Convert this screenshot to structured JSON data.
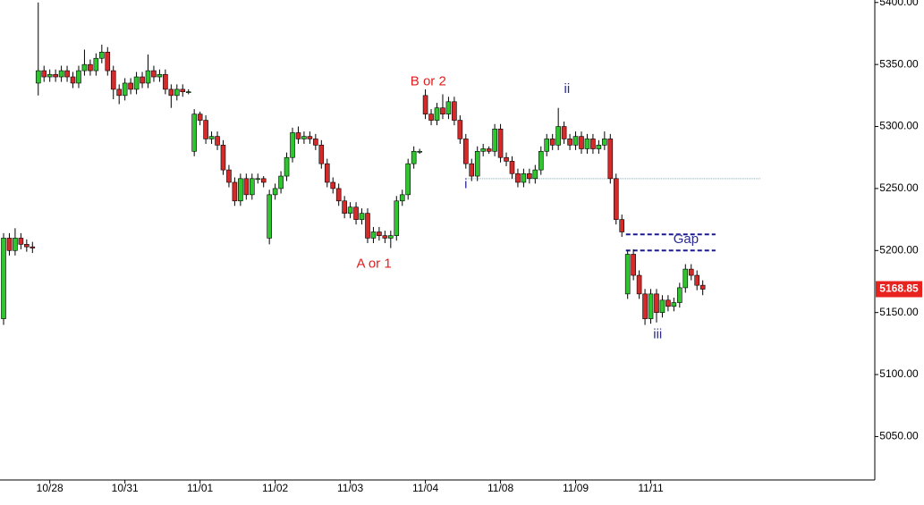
{
  "chart_data": {
    "type": "candlestick",
    "categories": [
      null,
      null,
      null,
      null,
      null,
      null,
      null,
      null,
      "10/28",
      null,
      null,
      null,
      null,
      null,
      null,
      null,
      null,
      null,
      null,
      null,
      null,
      "10/31",
      null,
      null,
      null,
      null,
      null,
      null,
      null,
      null,
      null,
      null,
      null,
      null,
      "11/01",
      null,
      null,
      null,
      null,
      null,
      null,
      null,
      null,
      null,
      null,
      null,
      null,
      "11/02",
      null,
      null,
      null,
      null,
      null,
      null,
      null,
      null,
      null,
      null,
      null,
      null,
      "11/03",
      null,
      null,
      null,
      null,
      null,
      null,
      null,
      null,
      null,
      null,
      null,
      null,
      "11/04",
      null,
      null,
      null,
      null,
      null,
      null,
      null,
      null,
      null,
      null,
      null,
      null,
      "11/08",
      null,
      null,
      null,
      null,
      null,
      null,
      null,
      null,
      null,
      null,
      null,
      null,
      "11/09",
      null,
      null,
      null,
      null,
      null,
      null,
      null,
      null,
      null,
      null,
      null,
      null,
      "11/11",
      null,
      null,
      null,
      null,
      null,
      null,
      null,
      null,
      null
    ],
    "open": [
      5145,
      5210,
      5200,
      5210,
      5205,
      5203,
      5335,
      5345,
      5340,
      5342,
      5340,
      5345,
      5340,
      5335,
      5345,
      5350,
      5345,
      5355,
      5360,
      5345,
      5330,
      5325,
      5335,
      5330,
      5340,
      5335,
      5345,
      5340,
      5342,
      5330,
      5325,
      5330,
      5328,
      5280,
      5310,
      5305,
      5290,
      5292,
      5285,
      5265,
      5255,
      5240,
      5258,
      5245,
      5258,
      5258,
      5210,
      5245,
      5250,
      5260,
      5275,
      5295,
      5290,
      5292,
      5290,
      5285,
      5270,
      5255,
      5250,
      5240,
      5230,
      5235,
      5225,
      5230,
      5210,
      5215,
      5212,
      5210,
      5212,
      5240,
      5245,
      5270,
      5280,
      5325,
      5310,
      5305,
      5315,
      5310,
      5320,
      5305,
      5290,
      5270,
      5260,
      5280,
      5282,
      5280,
      5298,
      5275,
      5272,
      5262,
      5255,
      5262,
      5258,
      5265,
      5280,
      5290,
      5285,
      5300,
      5290,
      5285,
      5292,
      5282,
      5290,
      5282,
      5285,
      5290,
      5258,
      5225,
      5165,
      5197,
      5180,
      5165,
      5145,
      5165,
      5150,
      5160,
      5155,
      5158,
      5170,
      5185,
      5180,
      5172
    ],
    "high": [
      5214,
      5214,
      5218,
      5214,
      5209,
      5207,
      5400,
      5349,
      5346,
      5346,
      5349,
      5349,
      5344,
      5349,
      5362,
      5354,
      5359,
      5366,
      5364,
      5349,
      5334,
      5339,
      5339,
      5344,
      5344,
      5358,
      5349,
      5346,
      5346,
      5334,
      5334,
      5334,
      5330,
      5314,
      5312,
      5309,
      5296,
      5296,
      5289,
      5269,
      5259,
      5262,
      5262,
      5262,
      5262,
      5260,
      5249,
      5254,
      5264,
      5279,
      5299,
      5300,
      5296,
      5296,
      5294,
      5289,
      5274,
      5259,
      5254,
      5244,
      5239,
      5239,
      5234,
      5234,
      5219,
      5219,
      5216,
      5216,
      5244,
      5249,
      5274,
      5284,
      5282,
      5330,
      5314,
      5319,
      5326,
      5324,
      5324,
      5309,
      5294,
      5274,
      5284,
      5286,
      5284,
      5302,
      5302,
      5279,
      5276,
      5266,
      5266,
      5266,
      5269,
      5284,
      5294,
      5294,
      5315,
      5304,
      5294,
      5296,
      5296,
      5294,
      5294,
      5289,
      5296,
      5294,
      5262,
      5229,
      5200,
      5201,
      5184,
      5169,
      5169,
      5169,
      5164,
      5164,
      5162,
      5174,
      5189,
      5189,
      5184,
      5176
    ],
    "low": [
      5140,
      5196,
      5196,
      5201,
      5199,
      5198,
      5325,
      5336,
      5336,
      5336,
      5336,
      5336,
      5331,
      5331,
      5341,
      5341,
      5341,
      5351,
      5341,
      5322,
      5318,
      5321,
      5326,
      5326,
      5331,
      5331,
      5336,
      5336,
      5326,
      5315,
      5321,
      5324,
      5326,
      5276,
      5301,
      5286,
      5286,
      5281,
      5261,
      5251,
      5236,
      5236,
      5241,
      5241,
      5254,
      5251,
      5205,
      5241,
      5246,
      5256,
      5271,
      5286,
      5286,
      5286,
      5281,
      5266,
      5251,
      5246,
      5236,
      5226,
      5226,
      5221,
      5221,
      5206,
      5206,
      5208,
      5206,
      5202,
      5208,
      5236,
      5241,
      5266,
      5278,
      5306,
      5301,
      5301,
      5306,
      5306,
      5301,
      5286,
      5266,
      5256,
      5256,
      5276,
      5278,
      5276,
      5271,
      5268,
      5258,
      5251,
      5251,
      5254,
      5254,
      5261,
      5276,
      5281,
      5281,
      5286,
      5281,
      5281,
      5278,
      5278,
      5278,
      5278,
      5281,
      5254,
      5221,
      5211,
      5161,
      5176,
      5161,
      5140,
      5141,
      5142,
      5146,
      5151,
      5151,
      5154,
      5166,
      5176,
      5168,
      5164
    ],
    "close": [
      5210,
      5200,
      5210,
      5205,
      5203,
      5202,
      5345,
      5340,
      5342,
      5340,
      5345,
      5340,
      5335,
      5345,
      5350,
      5345,
      5355,
      5360,
      5345,
      5330,
      5325,
      5335,
      5330,
      5340,
      5335,
      5345,
      5340,
      5342,
      5330,
      5325,
      5330,
      5328,
      5328,
      5310,
      5305,
      5290,
      5292,
      5285,
      5265,
      5255,
      5240,
      5258,
      5245,
      5258,
      5258,
      5255,
      5245,
      5250,
      5260,
      5275,
      5295,
      5290,
      5292,
      5290,
      5285,
      5270,
      5255,
      5250,
      5240,
      5230,
      5235,
      5225,
      5230,
      5210,
      5215,
      5212,
      5210,
      5212,
      5240,
      5245,
      5270,
      5280,
      5280,
      5310,
      5305,
      5315,
      5310,
      5320,
      5305,
      5290,
      5270,
      5260,
      5280,
      5282,
      5280,
      5298,
      5275,
      5272,
      5262,
      5255,
      5262,
      5258,
      5265,
      5280,
      5290,
      5285,
      5300,
      5290,
      5285,
      5292,
      5282,
      5290,
      5282,
      5285,
      5290,
      5258,
      5225,
      5215,
      5197,
      5180,
      5165,
      5145,
      5165,
      5150,
      5160,
      5155,
      5158,
      5170,
      5185,
      5180,
      5172,
      5168.85
    ],
    "up_color": "#2ec52e",
    "down_color": "#d42a2a",
    "ylim": [
      5015,
      5402
    ],
    "yticks": [
      {
        "value": 5050,
        "label": "5050.00"
      },
      {
        "value": 5100,
        "label": "5100.00"
      },
      {
        "value": 5150,
        "label": "5150.00"
      },
      {
        "value": 5200,
        "label": "5200.00"
      },
      {
        "value": 5250,
        "label": "5250.00"
      },
      {
        "value": 5300,
        "label": "5300.00"
      },
      {
        "value": 5350,
        "label": "5350.00"
      },
      {
        "value": 5400,
        "label": "5400.00"
      }
    ],
    "annotations": [
      {
        "text": "B or 2",
        "x": 73.5,
        "y": 5336,
        "color": "#e02020"
      },
      {
        "text": "A or 1",
        "x": 64.1,
        "y": 5189,
        "color": "#e02020"
      },
      {
        "text": "i",
        "x": 80,
        "y": 5253,
        "color": "#2a2a90"
      },
      {
        "text": "ii",
        "x": 97.5,
        "y": 5330,
        "color": "#2a2a90"
      },
      {
        "text": "iii",
        "x": 113.2,
        "y": 5132,
        "color": "#2a2a90"
      },
      {
        "text": "Gap",
        "x": 118.1,
        "y": 5209,
        "color": "#2a2a90"
      }
    ],
    "hlines": [
      {
        "value": 5258,
        "x1": 80,
        "x2": 131,
        "color": "#5ab4d8",
        "style": "dotted"
      },
      {
        "value": 5213,
        "x1": 107.7,
        "x2": 123.2,
        "color": "#1a1a8c",
        "style": "dashed"
      },
      {
        "value": 5200,
        "x1": 107.7,
        "x2": 123.2,
        "color": "#1a1a8c",
        "style": "dashed"
      }
    ],
    "last_color": "#e8231f"
  }
}
